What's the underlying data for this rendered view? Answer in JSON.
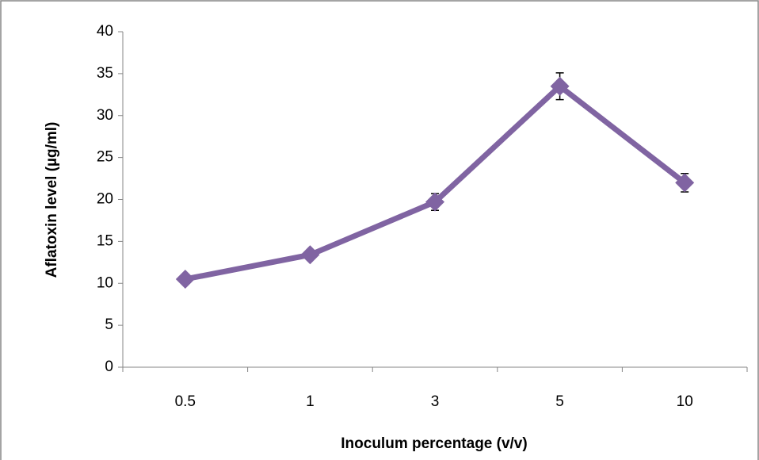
{
  "chart_data": {
    "type": "line",
    "x_label": "Inoculum percentage (v/v)",
    "y_label": "Aflatoxin level (µg/ml)",
    "categories": [
      "0.5",
      "1",
      "3",
      "5",
      "10"
    ],
    "values": [
      10.5,
      13.4,
      19.7,
      33.5,
      22
    ],
    "errors": [
      0.3,
      0.4,
      1.0,
      1.6,
      1.1
    ],
    "color": "#8064a2",
    "ylim": [
      0,
      40
    ],
    "yticks": [
      0,
      5,
      10,
      15,
      20,
      25,
      30,
      35,
      40
    ],
    "grid": false
  }
}
